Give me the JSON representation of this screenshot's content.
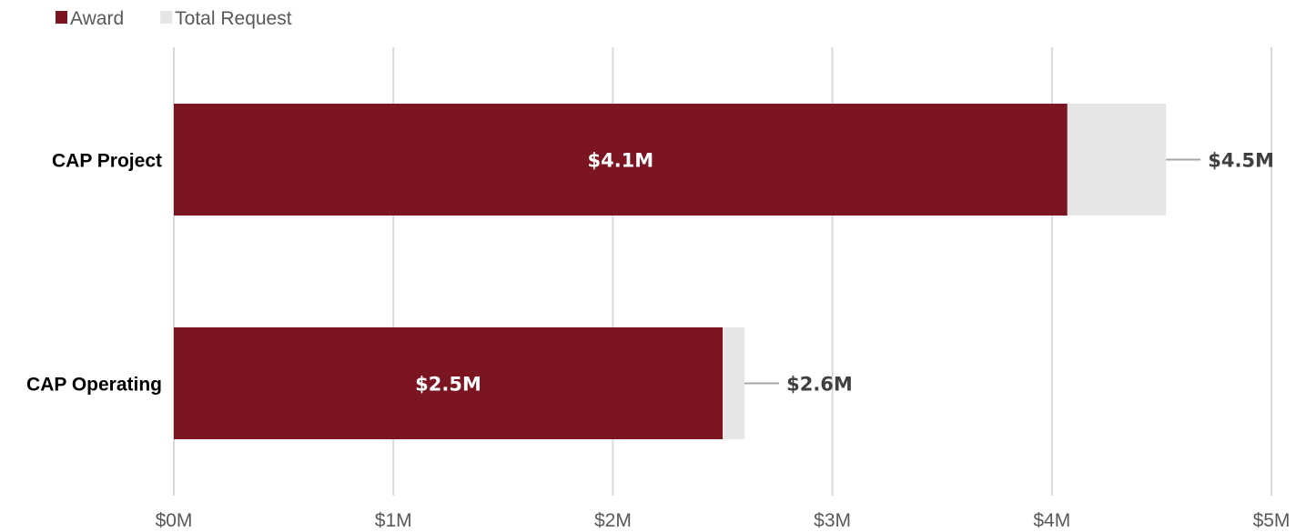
{
  "chart_data": {
    "type": "bar",
    "orientation": "horizontal",
    "categories": [
      "CAP Project",
      "CAP Operating"
    ],
    "series": [
      {
        "name": "Award",
        "values": [
          4.07,
          2.5
        ],
        "color": "#7b1522"
      },
      {
        "name": "Total Request",
        "values": [
          4.52,
          2.6
        ],
        "color": "#e6e6e6"
      }
    ],
    "overlap": true,
    "data_labels": {
      "Award": [
        "$4.1M",
        "$2.5M"
      ],
      "Total Request": [
        "$4.5M",
        "$2.6M"
      ]
    },
    "x_ticks": [
      "$0M",
      "$1M",
      "$2M",
      "$3M",
      "$4M",
      "$5M"
    ],
    "xlim": [
      0,
      5
    ],
    "grid": true,
    "legend": "top-left",
    "title": "",
    "xlabel": "",
    "ylabel": ""
  }
}
